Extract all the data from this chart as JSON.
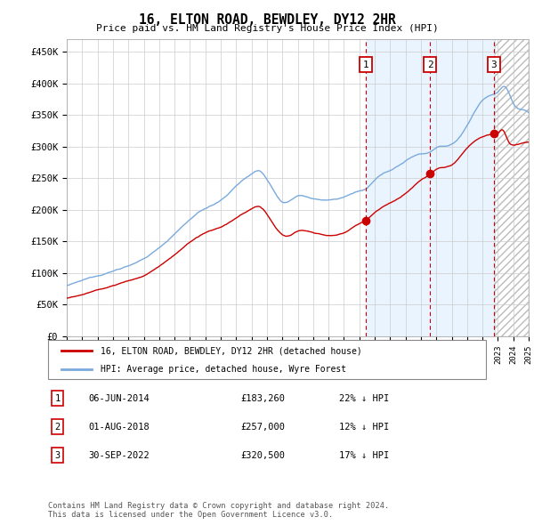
{
  "title": "16, ELTON ROAD, BEWDLEY, DY12 2HR",
  "subtitle": "Price paid vs. HM Land Registry's House Price Index (HPI)",
  "ylim": [
    0,
    470000
  ],
  "yticks": [
    0,
    50000,
    100000,
    150000,
    200000,
    250000,
    300000,
    350000,
    400000,
    450000
  ],
  "ytick_labels": [
    "£0",
    "£50K",
    "£100K",
    "£150K",
    "£200K",
    "£250K",
    "£300K",
    "£350K",
    "£400K",
    "£450K"
  ],
  "hpi_color": "#7aaadd",
  "price_color": "#cc0000",
  "vline_color": "#cc0000",
  "shade_color": "#ddeeff",
  "trans_dates_num": [
    2014.44,
    2018.59,
    2022.75
  ],
  "trans_prices": [
    183260,
    257000,
    320500
  ],
  "transaction_dates": [
    "06-JUN-2014",
    "01-AUG-2018",
    "30-SEP-2022"
  ],
  "transaction_prices_str": [
    "£183,260",
    "£257,000",
    "£320,500"
  ],
  "transaction_hpi": [
    "22% ↓ HPI",
    "12% ↓ HPI",
    "17% ↓ HPI"
  ],
  "legend_label_red": "16, ELTON ROAD, BEWDLEY, DY12 2HR (detached house)",
  "legend_label_blue": "HPI: Average price, detached house, Wyre Forest",
  "footer": "Contains HM Land Registry data © Crown copyright and database right 2024.\nThis data is licensed under the Open Government Licence v3.0.",
  "grid_color": "#cccccc",
  "background_color": "#ffffff",
  "xlim_start": 1995,
  "xlim_end": 2025
}
